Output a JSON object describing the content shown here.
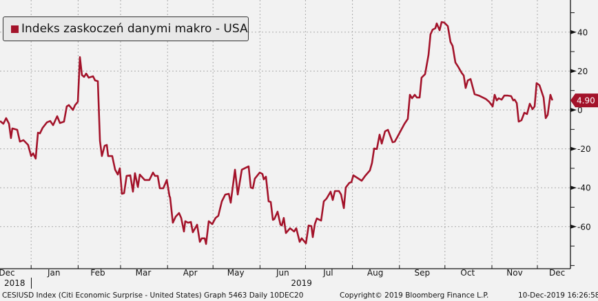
{
  "legend": {
    "label": "Indeks zaskoczeń danymi makro - USA",
    "color": "#a3132a"
  },
  "last_value_badge": "4.90",
  "footer": {
    "left": "CESIUSD Index (Citi Economic Surprise - United States) Graph 5463  Daily 10DEC20",
    "center": "Copyright© 2019 Bloomberg Finance L.P.",
    "right": "10-Dec-2019 16:26:58"
  },
  "chart_data": {
    "type": "line",
    "title": "",
    "xlabel": "",
    "ylabel": "",
    "x_unit": "days since 2018-12-01",
    "xlim": [
      10,
      376
    ],
    "ylim": [
      -80,
      57
    ],
    "y_ticks": [
      40,
      20,
      0,
      -20,
      -40,
      -60
    ],
    "y_tick_labels": [
      "40",
      "20",
      "0",
      "-20",
      "-40",
      "-60"
    ],
    "x_ticks": [
      {
        "label": "Dec",
        "day": 15,
        "year": "2018"
      },
      {
        "label": "Jan",
        "day": 46
      },
      {
        "label": "Feb",
        "day": 75
      },
      {
        "label": "Mar",
        "day": 105
      },
      {
        "label": "Apr",
        "day": 136
      },
      {
        "label": "May",
        "day": 166
      },
      {
        "label": "Jun",
        "day": 197,
        "year": "2019"
      },
      {
        "label": "Jul",
        "day": 227
      },
      {
        "label": "Aug",
        "day": 258
      },
      {
        "label": "Sep",
        "day": 289
      },
      {
        "label": "Oct",
        "day": 319
      },
      {
        "label": "Nov",
        "day": 350
      },
      {
        "label": "Dec",
        "day": 378
      }
    ],
    "month_starts": [
      31,
      62,
      90,
      121,
      151,
      182,
      212,
      243,
      274,
      304,
      335,
      365
    ],
    "grid": true,
    "legend_position": "top-left",
    "series": [
      {
        "name": "Indeks zaskoczeń danymi makro - USA",
        "color": "#a3132a",
        "points": [
          [
            10.5,
            -5.7
          ],
          [
            12.7,
            -7.1
          ],
          [
            14.5,
            -4.2
          ],
          [
            16.4,
            -7.1
          ],
          [
            17.7,
            -14.5
          ],
          [
            18.6,
            -9.5
          ],
          [
            21.8,
            -10.2
          ],
          [
            23.6,
            -16.3
          ],
          [
            25.9,
            -15.5
          ],
          [
            29,
            -18
          ],
          [
            31,
            -23.7
          ],
          [
            32.3,
            -22.3
          ],
          [
            34,
            -25
          ],
          [
            35.5,
            -11.7
          ],
          [
            36.8,
            -12
          ],
          [
            38.6,
            -9.2
          ],
          [
            41.4,
            -6.4
          ],
          [
            43.6,
            -5.7
          ],
          [
            45.5,
            -7.8
          ],
          [
            48.2,
            -3.2
          ],
          [
            50,
            -6.7
          ],
          [
            52.7,
            -6
          ],
          [
            54.5,
            1.8
          ],
          [
            55.9,
            2.5
          ],
          [
            58.6,
            0
          ],
          [
            60,
            2.5
          ],
          [
            61.8,
            4.2
          ],
          [
            63.2,
            27.2
          ],
          [
            64.5,
            18
          ],
          [
            65.9,
            17
          ],
          [
            67.3,
            18.7
          ],
          [
            69,
            16.6
          ],
          [
            71.8,
            17.3
          ],
          [
            73.2,
            15.2
          ],
          [
            75,
            14.8
          ],
          [
            76.4,
            -15.9
          ],
          [
            77.7,
            -23.7
          ],
          [
            79.5,
            -18.4
          ],
          [
            80.9,
            -18
          ],
          [
            81.8,
            -23.7
          ],
          [
            84.5,
            -23.7
          ],
          [
            86.4,
            -30.7
          ],
          [
            88.2,
            -33.2
          ],
          [
            89.5,
            -30
          ],
          [
            90.9,
            -43.1
          ],
          [
            92.3,
            -42.8
          ],
          [
            94,
            -33.9
          ],
          [
            96.4,
            -33.6
          ],
          [
            98.2,
            -42
          ],
          [
            99.5,
            -32.5
          ],
          [
            101.4,
            -39.6
          ],
          [
            102.7,
            -33.2
          ],
          [
            105.9,
            -36
          ],
          [
            109,
            -36
          ],
          [
            111.4,
            -32.2
          ],
          [
            112.7,
            -33.9
          ],
          [
            114.5,
            -33.9
          ],
          [
            115.9,
            -40.3
          ],
          [
            118.2,
            -40.3
          ],
          [
            120.5,
            -36
          ],
          [
            122.3,
            -44.5
          ],
          [
            122.7,
            -44.9
          ],
          [
            124.5,
            -58
          ],
          [
            126.4,
            -54.8
          ],
          [
            128.6,
            -53
          ],
          [
            130,
            -55.5
          ],
          [
            131.8,
            -62.5
          ],
          [
            132.7,
            -57.2
          ],
          [
            134.5,
            -58
          ],
          [
            136.4,
            -57.6
          ],
          [
            137.7,
            -62.9
          ],
          [
            140.5,
            -59
          ],
          [
            142.3,
            -67.8
          ],
          [
            143.6,
            -66
          ],
          [
            145.5,
            -66
          ],
          [
            146.4,
            -68.9
          ],
          [
            148.2,
            -57.2
          ],
          [
            150.5,
            -58.7
          ],
          [
            152.7,
            -55.5
          ],
          [
            154.5,
            -54.4
          ],
          [
            156.8,
            -47
          ],
          [
            159.1,
            -43.5
          ],
          [
            161.4,
            -43.1
          ],
          [
            162.7,
            -47.7
          ],
          [
            165.5,
            -30.7
          ],
          [
            167.3,
            -43.5
          ],
          [
            170,
            -30.7
          ],
          [
            171.8,
            -30
          ],
          [
            174.5,
            -29
          ],
          [
            175.9,
            -39.9
          ],
          [
            177.3,
            -40.3
          ],
          [
            178.6,
            -35.3
          ],
          [
            181.8,
            -32.2
          ],
          [
            183.6,
            -32.9
          ],
          [
            184.5,
            -35.7
          ],
          [
            185.9,
            -34.3
          ],
          [
            187.7,
            -47
          ],
          [
            189.1,
            -47.3
          ],
          [
            190.5,
            -56.5
          ],
          [
            191.4,
            -56.2
          ],
          [
            193.6,
            -52.3
          ],
          [
            195.5,
            -59
          ],
          [
            196.4,
            -59.4
          ],
          [
            197.7,
            -55.5
          ],
          [
            199.1,
            -63.3
          ],
          [
            201.8,
            -60.8
          ],
          [
            204.5,
            -62.5
          ],
          [
            205.9,
            -60.8
          ],
          [
            208.2,
            -67.8
          ],
          [
            209.5,
            -66
          ],
          [
            212.3,
            -68.6
          ],
          [
            214.1,
            -59.4
          ],
          [
            215.9,
            -59.7
          ],
          [
            216.8,
            -65.4
          ],
          [
            218.2,
            -58.7
          ],
          [
            219.5,
            -55.8
          ],
          [
            222.3,
            -56.9
          ],
          [
            224.1,
            -47
          ],
          [
            225.9,
            -45.6
          ],
          [
            228.6,
            -42
          ],
          [
            230,
            -46.3
          ],
          [
            231.4,
            -41.7
          ],
          [
            234.1,
            -41.7
          ],
          [
            235.5,
            -43.5
          ],
          [
            237.3,
            -50.5
          ],
          [
            238.6,
            -39.9
          ],
          [
            240.9,
            -37.5
          ],
          [
            242.3,
            -37.1
          ],
          [
            243.6,
            -33.6
          ],
          [
            246.4,
            -35
          ],
          [
            249.1,
            -36.4
          ],
          [
            251.4,
            -33.9
          ],
          [
            254.5,
            -31.1
          ],
          [
            255.9,
            -27.2
          ],
          [
            257.3,
            -19.8
          ],
          [
            259.1,
            -20.1
          ],
          [
            260.9,
            -12.7
          ],
          [
            262.3,
            -17.3
          ],
          [
            264.5,
            -11
          ],
          [
            266.4,
            -10.2
          ],
          [
            269.5,
            -16.6
          ],
          [
            270.9,
            -16.3
          ],
          [
            272.7,
            -13.8
          ],
          [
            277.3,
            -7.1
          ],
          [
            279.5,
            -4.6
          ],
          [
            280.9,
            7.8
          ],
          [
            282.3,
            6
          ],
          [
            284.1,
            7.8
          ],
          [
            285.5,
            6.4
          ],
          [
            287.3,
            6.4
          ],
          [
            288.6,
            16.6
          ],
          [
            290.9,
            18.4
          ],
          [
            293.2,
            28.3
          ],
          [
            294.5,
            38.9
          ],
          [
            295.9,
            41.3
          ],
          [
            297.7,
            42
          ],
          [
            298.6,
            44.5
          ],
          [
            300.5,
            41
          ],
          [
            301.8,
            45.2
          ],
          [
            303.6,
            44.9
          ],
          [
            305.9,
            43.1
          ],
          [
            307.7,
            35
          ],
          [
            309.1,
            32.9
          ],
          [
            310.9,
            24.4
          ],
          [
            312.7,
            22.3
          ],
          [
            315,
            19.1
          ],
          [
            316.4,
            17.7
          ],
          [
            317.7,
            11.3
          ],
          [
            319.1,
            15.2
          ],
          [
            320.9,
            15.9
          ],
          [
            323.6,
            8.1
          ],
          [
            326.4,
            7.4
          ],
          [
            330.9,
            5.7
          ],
          [
            333.2,
            4.2
          ],
          [
            335.5,
            1.8
          ],
          [
            336.8,
            7.8
          ],
          [
            338.2,
            4.9
          ],
          [
            339.5,
            6
          ],
          [
            341.4,
            5.3
          ],
          [
            343.2,
            7.4
          ],
          [
            345.5,
            7.4
          ],
          [
            347.7,
            7.1
          ],
          [
            349.1,
            4.9
          ],
          [
            350,
            5.3
          ],
          [
            351.4,
            3.5
          ],
          [
            352.7,
            -6
          ],
          [
            354.5,
            -5.3
          ],
          [
            356.4,
            -1.4
          ],
          [
            358.2,
            -2.1
          ],
          [
            360,
            3.2
          ],
          [
            361.8,
            0.4
          ],
          [
            363.2,
            1.8
          ],
          [
            364.5,
            13.8
          ],
          [
            366.4,
            12.7
          ],
          [
            369.1,
            6.4
          ],
          [
            370.5,
            -4.2
          ],
          [
            371.8,
            -2.5
          ],
          [
            373.6,
            7.8
          ],
          [
            374.9,
            4.9
          ]
        ]
      }
    ]
  }
}
